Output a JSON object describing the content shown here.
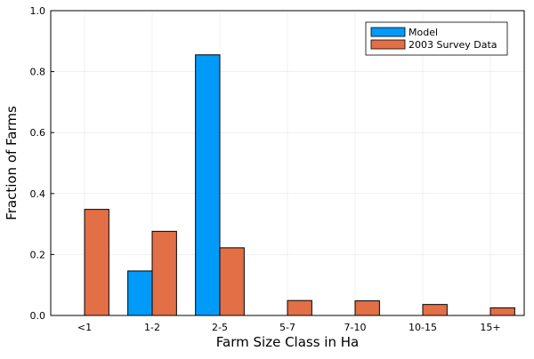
{
  "chart_data": {
    "type": "bar",
    "xlabel": "Farm Size Class in Ha",
    "ylabel": "Fraction of Farms",
    "categories": [
      "<1",
      "1-2",
      "2-5",
      "5-7",
      "7-10",
      "10-15",
      "15+"
    ],
    "ylim": [
      0,
      1
    ],
    "yticks": [
      "0.0",
      "0.2",
      "0.4",
      "0.6",
      "0.8",
      "1.0"
    ],
    "grid": true,
    "legend_position": "top-right",
    "series": [
      {
        "name": "Model",
        "color": "#009AF9",
        "values": [
          0,
          0.146,
          0.855,
          0,
          0,
          0,
          0
        ]
      },
      {
        "name": "2003 Survey Data",
        "color": "#E26F46",
        "values": [
          0.348,
          0.276,
          0.222,
          0.049,
          0.048,
          0.036,
          0.025
        ]
      }
    ]
  }
}
